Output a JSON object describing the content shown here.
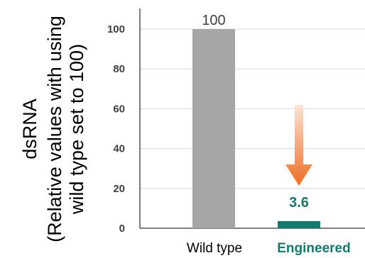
{
  "chart_data": {
    "type": "bar",
    "categories": [
      "Wild type",
      "Engineered"
    ],
    "values": [
      100,
      3.6
    ],
    "data_labels": [
      "100",
      "3.6"
    ],
    "ylabel_lines": [
      "dsRNA",
      "(Relative values with using",
      "wild type set to 100)"
    ],
    "xlabel": "",
    "ylim": [
      0,
      100
    ],
    "yticks": [
      "0",
      "20",
      "40",
      "60",
      "80",
      "100"
    ],
    "grid": true,
    "legend": "none",
    "annotation": "downward arrow pointing to Engineered bar",
    "colors": {
      "wild_type_bar": "#a6a6a6",
      "engineered_bar": "#127a6e",
      "engineered_text": "#127a6e",
      "arrow_top": "#fce4d6",
      "arrow_bottom": "#ed6d23",
      "gridline": "#d9d9d9",
      "axis": "#000000"
    }
  }
}
